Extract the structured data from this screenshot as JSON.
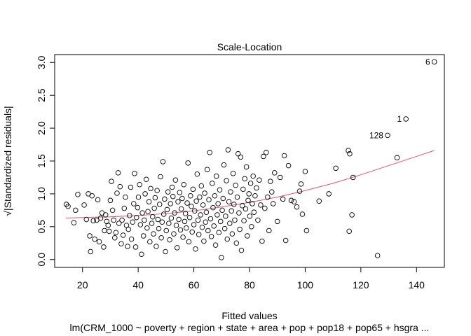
{
  "chart_data": {
    "type": "scatter",
    "title": "Scale-Location",
    "xlabel": "Fitted values",
    "ylabel": "√|Standardized residuals|",
    "subtitle": "lm(CRM_1000 ~ poverty + region + state + area + pop + pop18 + pop65 + hsgra ...",
    "xlim": [
      10,
      150
    ],
    "ylim": [
      -0.12,
      3.12
    ],
    "x_ticks": [
      20,
      40,
      60,
      80,
      100,
      120,
      140
    ],
    "y_ticks": [
      0.0,
      0.5,
      1.0,
      1.5,
      2.0,
      2.5,
      3.0
    ],
    "y_tick_labels": [
      "0.0",
      "0.5",
      "1.0",
      "1.5",
      "2.0",
      "2.5",
      "3.0"
    ],
    "grid": false,
    "point_color": "#000000",
    "smooth_color": "#df536b",
    "labeled_points": [
      {
        "label": "6",
        "x": 146.4,
        "y": 3.01
      },
      {
        "label": "1",
        "x": 136.2,
        "y": 2.14
      },
      {
        "label": "128",
        "x": 129.6,
        "y": 1.89
      }
    ],
    "points": [
      [
        14.2,
        0.84
      ],
      [
        14.8,
        0.81
      ],
      [
        16.9,
        0.56
      ],
      [
        17.5,
        0.75
      ],
      [
        18.3,
        0.99
      ],
      [
        20.6,
        0.83
      ],
      [
        21.4,
        0.61
      ],
      [
        22.1,
        1.0
      ],
      [
        22.6,
        0.36
      ],
      [
        22.9,
        0.12
      ],
      [
        23.4,
        0.97
      ],
      [
        23.9,
        0.59
      ],
      [
        24.4,
        0.31
      ],
      [
        25.1,
        0.6
      ],
      [
        25.5,
        0.91
      ],
      [
        26.0,
        0.27
      ],
      [
        26.5,
        0.63
      ],
      [
        27.0,
        0.71
      ],
      [
        27.6,
        0.19
      ],
      [
        27.9,
        0.44
      ],
      [
        28.3,
        0.68
      ],
      [
        28.7,
        0.58
      ],
      [
        29.2,
        0.52
      ],
      [
        29.6,
        0.43
      ],
      [
        30.0,
        0.9
      ],
      [
        30.4,
        1.19
      ],
      [
        30.8,
        0.75
      ],
      [
        31.2,
        0.6
      ],
      [
        31.6,
        0.33
      ],
      [
        32.0,
        0.41
      ],
      [
        32.4,
        1.01
      ],
      [
        32.8,
        1.32
      ],
      [
        33.1,
        0.55
      ],
      [
        33.5,
        1.11
      ],
      [
        33.9,
        0.24
      ],
      [
        34.2,
        0.6
      ],
      [
        34.6,
        0.37
      ],
      [
        35.0,
        0.78
      ],
      [
        35.4,
        0.95
      ],
      [
        35.8,
        0.52
      ],
      [
        36.2,
        0.2
      ],
      [
        36.5,
        0.46
      ],
      [
        36.9,
        0.67
      ],
      [
        37.3,
        1.1
      ],
      [
        37.6,
        0.31
      ],
      [
        38.0,
        0.57
      ],
      [
        38.4,
        0.85
      ],
      [
        38.7,
        1.31
      ],
      [
        39.1,
        0.19
      ],
      [
        39.4,
        0.64
      ],
      [
        39.8,
        0.79
      ],
      [
        40.1,
        0.95
      ],
      [
        40.5,
        1.14
      ],
      [
        40.8,
        0.53
      ],
      [
        41.2,
        0.08
      ],
      [
        41.5,
        0.71
      ],
      [
        41.9,
        0.36
      ],
      [
        42.2,
        0.6
      ],
      [
        42.5,
        1.0
      ],
      [
        42.9,
        1.22
      ],
      [
        43.2,
        0.48
      ],
      [
        43.5,
        0.73
      ],
      [
        43.9,
        0.88
      ],
      [
        44.2,
        0.27
      ],
      [
        44.5,
        1.08
      ],
      [
        44.9,
        0.55
      ],
      [
        45.2,
        0.65
      ],
      [
        45.5,
        0.39
      ],
      [
        45.8,
        0.78
      ],
      [
        46.1,
        0.94
      ],
      [
        46.5,
        0.2
      ],
      [
        46.8,
        1.05
      ],
      [
        47.1,
        0.61
      ],
      [
        47.4,
        0.47
      ],
      [
        47.7,
        0.84
      ],
      [
        48.0,
        1.26
      ],
      [
        48.3,
        0.33
      ],
      [
        48.6,
        0.57
      ],
      [
        48.9,
        1.49
      ],
      [
        49.2,
        0.69
      ],
      [
        49.5,
        0.92
      ],
      [
        49.8,
        0.12
      ],
      [
        50.1,
        0.44
      ],
      [
        50.4,
        0.76
      ],
      [
        50.7,
        1.03
      ],
      [
        51.0,
        0.55
      ],
      [
        51.3,
        0.3
      ],
      [
        51.6,
        0.85
      ],
      [
        51.9,
        0.63
      ],
      [
        52.2,
        1.1
      ],
      [
        52.5,
        0.96
      ],
      [
        52.8,
        0.39
      ],
      [
        53.1,
        0.71
      ],
      [
        53.4,
        1.21
      ],
      [
        53.7,
        0.52
      ],
      [
        54.0,
        0.18
      ],
      [
        54.3,
        0.88
      ],
      [
        54.6,
        0.61
      ],
      [
        54.9,
        1.02
      ],
      [
        55.2,
        0.45
      ],
      [
        55.5,
        0.77
      ],
      [
        55.8,
        0.93
      ],
      [
        56.1,
        0.34
      ],
      [
        56.4,
        1.14
      ],
      [
        56.7,
        0.58
      ],
      [
        57.0,
        0.7
      ],
      [
        57.3,
        0.48
      ],
      [
        57.6,
        0.86
      ],
      [
        57.9,
        1.47
      ],
      [
        58.2,
        0.27
      ],
      [
        58.5,
        0.64
      ],
      [
        58.8,
        0.97
      ],
      [
        59.1,
        0.81
      ],
      [
        59.4,
        0.42
      ],
      [
        59.7,
        1.07
      ],
      [
        60.0,
        0.53
      ],
      [
        60.3,
        0.74
      ],
      [
        60.6,
        0.16
      ],
      [
        60.9,
        0.89
      ],
      [
        61.2,
        1.3
      ],
      [
        61.5,
        0.6
      ],
      [
        61.8,
        0.38
      ],
      [
        62.1,
        0.95
      ],
      [
        62.4,
        0.68
      ],
      [
        62.7,
        1.12
      ],
      [
        63.0,
        0.49
      ],
      [
        63.3,
        0.83
      ],
      [
        63.6,
        0.28
      ],
      [
        63.9,
        1.01
      ],
      [
        64.2,
        0.57
      ],
      [
        64.5,
        0.72
      ],
      [
        64.8,
        1.37
      ],
      [
        65.1,
        0.44
      ],
      [
        65.4,
        0.91
      ],
      [
        65.7,
        1.63
      ],
      [
        66.0,
        0.62
      ],
      [
        66.3,
        0.35
      ],
      [
        66.6,
        1.16
      ],
      [
        66.9,
        0.79
      ],
      [
        67.2,
        0.51
      ],
      [
        67.5,
        0.97
      ],
      [
        67.8,
        0.22
      ],
      [
        68.1,
        1.27
      ],
      [
        68.4,
        0.68
      ],
      [
        68.7,
        0.85
      ],
      [
        69.0,
        0.41
      ],
      [
        69.3,
        1.06
      ],
      [
        69.6,
        0.58
      ],
      [
        69.9,
        0.03
      ],
      [
        70.2,
        0.75
      ],
      [
        70.5,
        0.93
      ],
      [
        70.8,
        1.44
      ],
      [
        71.1,
        0.47
      ],
      [
        71.4,
        0.66
      ],
      [
        71.7,
        1.2
      ],
      [
        72.0,
        0.31
      ],
      [
        72.3,
        1.67
      ],
      [
        72.6,
        0.88
      ],
      [
        72.9,
        0.55
      ],
      [
        73.2,
        1.03
      ],
      [
        73.5,
        0.74
      ],
      [
        73.8,
        0.39
      ],
      [
        74.1,
        1.31
      ],
      [
        74.4,
        0.84
      ],
      [
        74.7,
        0.6
      ],
      [
        75.0,
        1.13
      ],
      [
        75.3,
        0.25
      ],
      [
        75.6,
        0.95
      ],
      [
        75.9,
        1.61
      ],
      [
        76.2,
        0.71
      ],
      [
        76.5,
        0.46
      ],
      [
        76.8,
        1.56
      ],
      [
        77.1,
        0.14
      ],
      [
        77.4,
        0.82
      ],
      [
        77.7,
        1.07
      ],
      [
        78.0,
        0.59
      ],
      [
        78.3,
        1.23
      ],
      [
        78.6,
        0.77
      ],
      [
        78.9,
        1.41
      ],
      [
        79.2,
        0.36
      ],
      [
        79.5,
        0.9
      ],
      [
        79.8,
        1.0
      ],
      [
        80.1,
        0.66
      ],
      [
        80.4,
        1.16
      ],
      [
        80.7,
        0.5
      ],
      [
        81.0,
        0.85
      ],
      [
        81.3,
        1.27
      ],
      [
        81.6,
        0.72
      ],
      [
        82.0,
        0.97
      ],
      [
        82.5,
        1.09
      ],
      [
        83.0,
        0.6
      ],
      [
        83.5,
        1.21
      ],
      [
        84.0,
        0.83
      ],
      [
        84.5,
        0.28
      ],
      [
        85.0,
        1.57
      ],
      [
        85.5,
        0.78
      ],
      [
        86.0,
        1.63
      ],
      [
        86.5,
        0.95
      ],
      [
        87.0,
        0.44
      ],
      [
        87.5,
        1.19
      ],
      [
        88.0,
        1.03
      ],
      [
        88.5,
        0.85
      ],
      [
        89.0,
        1.32
      ],
      [
        90.0,
        0.58
      ],
      [
        91.0,
        1.25
      ],
      [
        92.0,
        0.92
      ],
      [
        92.5,
        1.58
      ],
      [
        93.0,
        0.29
      ],
      [
        94.0,
        1.43
      ],
      [
        95.0,
        0.9
      ],
      [
        96.0,
        0.88
      ],
      [
        97.0,
        0.8
      ],
      [
        98.0,
        1.04
      ],
      [
        98.5,
        1.15
      ],
      [
        99.0,
        0.69
      ],
      [
        100.0,
        1.34
      ],
      [
        100.5,
        0.44
      ],
      [
        105.0,
        0.89
      ],
      [
        108.5,
        1.0
      ],
      [
        111.0,
        1.39
      ],
      [
        115.5,
        1.66
      ],
      [
        115.8,
        0.43
      ],
      [
        116.0,
        1.61
      ],
      [
        116.8,
        0.68
      ],
      [
        117.2,
        1.25
      ],
      [
        126.0,
        0.06
      ],
      [
        133.0,
        1.55
      ]
    ],
    "smooth": [
      [
        14,
        0.63
      ],
      [
        20,
        0.64
      ],
      [
        30,
        0.65
      ],
      [
        40,
        0.67
      ],
      [
        50,
        0.7
      ],
      [
        60,
        0.74
      ],
      [
        70,
        0.8
      ],
      [
        80,
        0.87
      ],
      [
        90,
        0.95
      ],
      [
        100,
        1.05
      ],
      [
        110,
        1.16
      ],
      [
        120,
        1.29
      ],
      [
        130,
        1.43
      ],
      [
        140,
        1.57
      ],
      [
        146.4,
        1.66
      ]
    ]
  }
}
